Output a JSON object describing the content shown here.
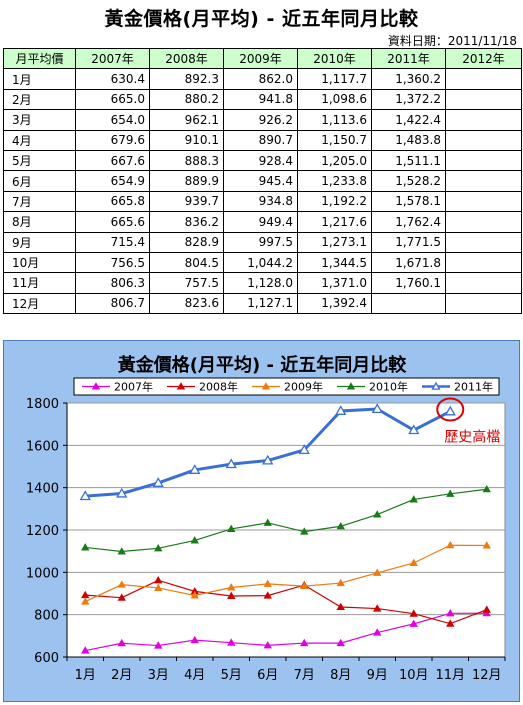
{
  "header": {
    "title": "黃金價格(月平均) - 近五年同月比較",
    "date_label": "資料日期：2011/11/18"
  },
  "table": {
    "columns": [
      "月平均價",
      "2007年",
      "2008年",
      "2009年",
      "2010年",
      "2011年",
      "2012年"
    ],
    "rows": [
      [
        "1月",
        "630.4",
        "892.3",
        "862.0",
        "1,117.7",
        "1,360.2",
        ""
      ],
      [
        "2月",
        "665.0",
        "880.2",
        "941.8",
        "1,098.6",
        "1,372.2",
        ""
      ],
      [
        "3月",
        "654.0",
        "962.1",
        "926.2",
        "1,113.6",
        "1,422.4",
        ""
      ],
      [
        "4月",
        "679.6",
        "910.1",
        "890.7",
        "1,150.7",
        "1,483.8",
        ""
      ],
      [
        "5月",
        "667.6",
        "888.3",
        "928.4",
        "1,205.0",
        "1,511.1",
        ""
      ],
      [
        "6月",
        "654.9",
        "889.9",
        "945.4",
        "1,233.8",
        "1,528.2",
        ""
      ],
      [
        "7月",
        "665.8",
        "939.7",
        "934.8",
        "1,192.2",
        "1,578.1",
        ""
      ],
      [
        "8月",
        "665.6",
        "836.2",
        "949.4",
        "1,217.6",
        "1,762.4",
        ""
      ],
      [
        "9月",
        "715.4",
        "828.9",
        "997.5",
        "1,273.1",
        "1,771.5",
        ""
      ],
      [
        "10月",
        "756.5",
        "804.5",
        "1,044.2",
        "1,344.5",
        "1,671.8",
        ""
      ],
      [
        "11月",
        "806.3",
        "757.5",
        "1,128.0",
        "1,371.0",
        "1,760.1",
        ""
      ],
      [
        "12月",
        "806.7",
        "823.6",
        "1,127.1",
        "1,392.4",
        "",
        ""
      ]
    ]
  },
  "chart_data": {
    "type": "line",
    "title": "黃金價格(月平均) - 近五年同月比較",
    "categories": [
      "1月",
      "2月",
      "3月",
      "4月",
      "5月",
      "6月",
      "7月",
      "8月",
      "9月",
      "10月",
      "11月",
      "12月"
    ],
    "ylim": [
      600,
      1800
    ],
    "yticks": [
      600,
      800,
      1000,
      1200,
      1400,
      1600,
      1800
    ],
    "grid": true,
    "legend": "top",
    "series": [
      {
        "name": "2007年",
        "color": "#e000e0",
        "marker": "triangle",
        "values": [
          630.4,
          665.0,
          654.0,
          679.6,
          667.6,
          654.9,
          665.8,
          665.6,
          715.4,
          756.5,
          806.3,
          806.7
        ]
      },
      {
        "name": "2008年",
        "color": "#d00000",
        "marker": "triangle",
        "values": [
          892.3,
          880.2,
          962.1,
          910.1,
          888.3,
          889.9,
          939.7,
          836.2,
          828.9,
          804.5,
          757.5,
          823.6
        ]
      },
      {
        "name": "2009年",
        "color": "#ef7a10",
        "marker": "triangle",
        "values": [
          862.0,
          941.8,
          926.2,
          890.7,
          928.4,
          945.4,
          934.8,
          949.4,
          997.5,
          1044.2,
          1128.0,
          1127.1
        ]
      },
      {
        "name": "2010年",
        "color": "#1a7a1a",
        "marker": "triangle",
        "values": [
          1117.7,
          1098.6,
          1113.6,
          1150.7,
          1205.0,
          1233.8,
          1192.2,
          1217.6,
          1273.1,
          1344.5,
          1371.0,
          1392.4
        ]
      },
      {
        "name": "2011年",
        "color": "#3a6fd8",
        "marker": "triangle-open",
        "thick": true,
        "values": [
          1360.2,
          1372.2,
          1422.4,
          1483.8,
          1511.1,
          1528.2,
          1578.1,
          1762.4,
          1771.5,
          1671.8,
          1760.1,
          null
        ]
      }
    ],
    "annotation": {
      "text": "歷史高檔",
      "color": "#e00000",
      "series": "2011年",
      "category": "11月"
    }
  }
}
